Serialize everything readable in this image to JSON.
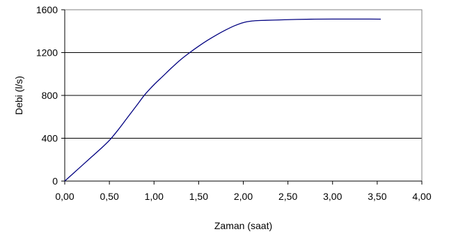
{
  "chart_data": {
    "type": "line",
    "title": "",
    "xlabel": "Zaman (saat)",
    "ylabel": "Debi (l/s)",
    "xlim": [
      0,
      4
    ],
    "ylim": [
      0,
      1600
    ],
    "x_ticks": [
      "0,00",
      "0,50",
      "1,00",
      "1,50",
      "2,00",
      "2,50",
      "3,00",
      "3,50",
      "4,00"
    ],
    "y_ticks": [
      "0",
      "400",
      "800",
      "1200",
      "1600"
    ],
    "grid": "horizontal",
    "legend": "none",
    "series_color": "#000080",
    "series": [
      {
        "x": [
          0,
          0.1,
          0.2,
          0.3,
          0.4,
          0.5,
          0.6,
          0.7,
          0.8,
          0.9,
          1.0,
          1.1,
          1.2,
          1.3,
          1.4,
          1.5,
          1.6,
          1.7,
          1.8,
          1.9,
          2.0,
          2.1,
          2.2,
          2.4,
          2.6,
          2.8,
          3.0,
          3.2,
          3.4,
          3.54
        ],
        "y": [
          0,
          75,
          150,
          225,
          300,
          380,
          480,
          590,
          700,
          810,
          900,
          980,
          1060,
          1135,
          1200,
          1260,
          1315,
          1365,
          1410,
          1450,
          1480,
          1495,
          1500,
          1505,
          1510,
          1512,
          1513,
          1513,
          1513,
          1512
        ]
      }
    ]
  }
}
